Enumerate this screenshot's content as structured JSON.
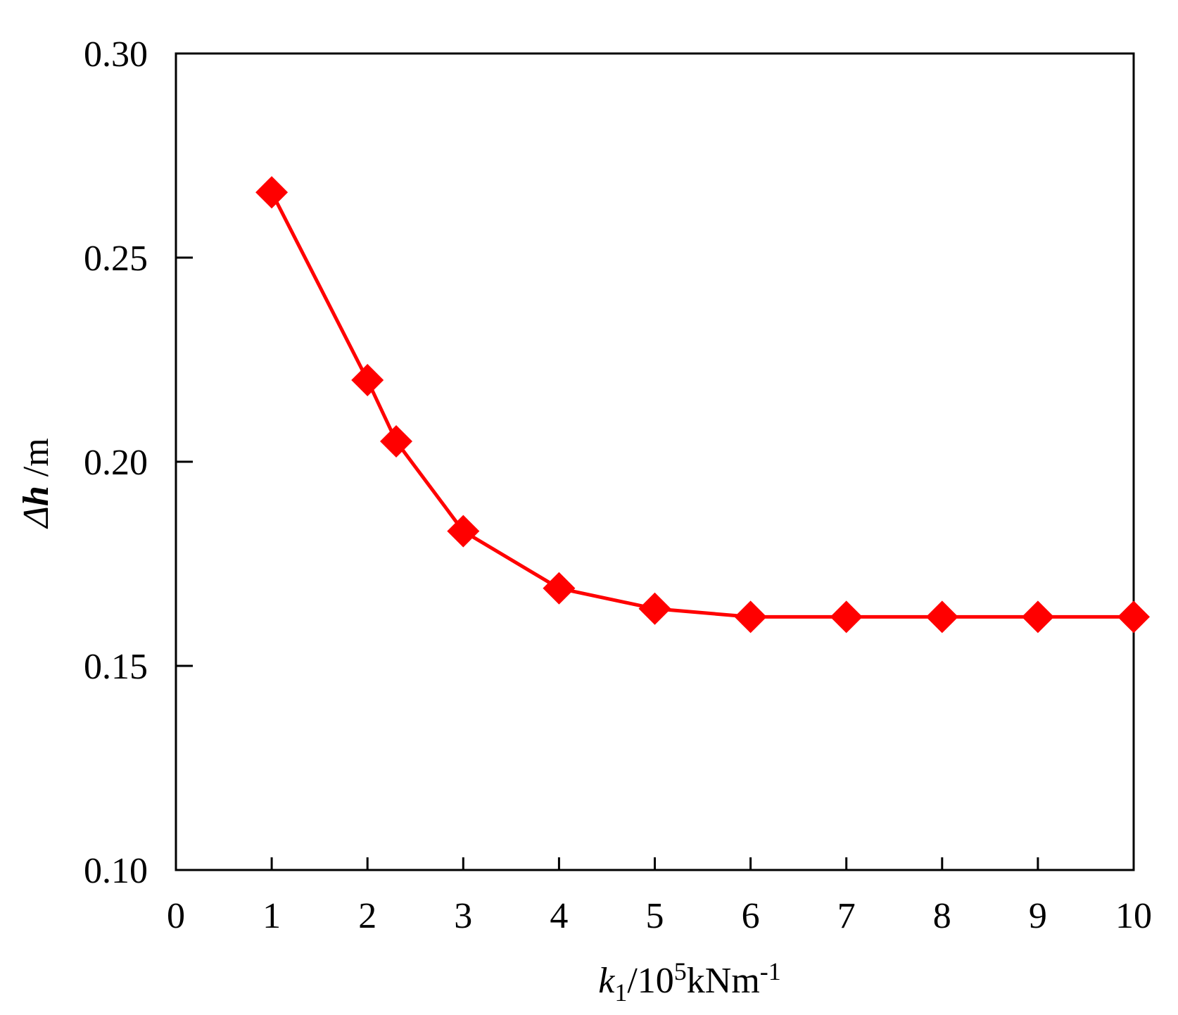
{
  "chart_data": {
    "type": "line",
    "title": "",
    "xlabel": {
      "var": "k",
      "sub": "1",
      "unit_prefix": "/10",
      "sup": "5",
      "unit": "kNm",
      "unit_sup": "-1"
    },
    "ylabel": {
      "var_prefix": "Δ",
      "var": "h",
      "unit": " /m"
    },
    "xlim": [
      0,
      10
    ],
    "ylim": [
      0.1,
      0.3
    ],
    "xticks": [
      0,
      1,
      2,
      3,
      4,
      5,
      6,
      7,
      8,
      9,
      10
    ],
    "yticks": [
      0.1,
      0.15,
      0.2,
      0.25,
      0.3
    ],
    "xtick_labels": [
      "0",
      "1",
      "2",
      "3",
      "4",
      "5",
      "6",
      "7",
      "8",
      "9",
      "10"
    ],
    "ytick_labels": [
      "0.10",
      "0.15",
      "0.20",
      "0.25",
      "0.30"
    ],
    "grid": false,
    "legend": "none",
    "series": [
      {
        "color": "#ff0000",
        "marker": "diamond",
        "x": [
          1,
          2,
          2.3,
          3,
          4,
          5,
          6,
          7,
          8,
          9,
          10
        ],
        "y": [
          0.266,
          0.22,
          0.205,
          0.183,
          0.169,
          0.164,
          0.162,
          0.162,
          0.162,
          0.162,
          0.162
        ]
      }
    ]
  }
}
